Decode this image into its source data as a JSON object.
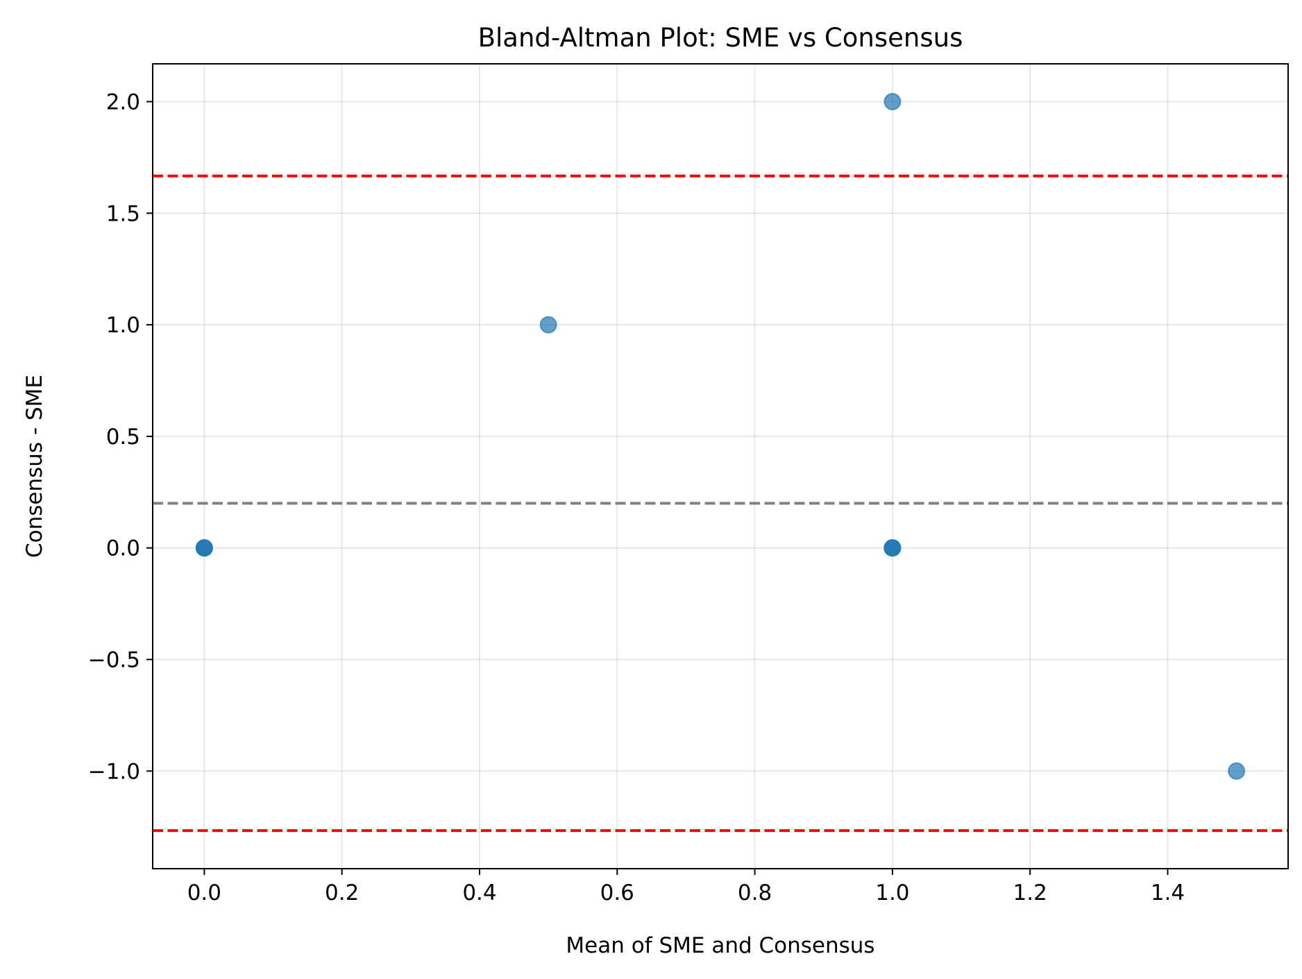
{
  "chart_data": {
    "type": "scatter",
    "title": "Bland-Altman Plot: SME vs Consensus",
    "xlabel": "Mean of SME and Consensus",
    "ylabel": "Consensus - SME",
    "xlim": [
      -0.075,
      1.575
    ],
    "ylim": [
      -1.4375,
      2.1695
    ],
    "xticks": [
      0.0,
      0.2,
      0.4,
      0.6,
      0.8,
      1.0,
      1.2,
      1.4
    ],
    "xtick_labels": [
      "0.0",
      "0.2",
      "0.4",
      "0.6",
      "0.8",
      "1.0",
      "1.2",
      "1.4"
    ],
    "yticks": [
      -1.0,
      -0.5,
      0.0,
      0.5,
      1.0,
      1.5,
      2.0
    ],
    "ytick_labels": [
      "−1.0",
      "−0.5",
      "0.0",
      "0.5",
      "1.0",
      "1.5",
      "2.0"
    ],
    "grid": true,
    "points": [
      {
        "x": 0.0,
        "y": 0.0
      },
      {
        "x": 0.0,
        "y": 0.0
      },
      {
        "x": 0.0,
        "y": 0.0
      },
      {
        "x": 0.5,
        "y": 1.0
      },
      {
        "x": 1.0,
        "y": 2.0
      },
      {
        "x": 1.0,
        "y": 0.0
      },
      {
        "x": 1.0,
        "y": 0.0
      },
      {
        "x": 1.0,
        "y": 0.0
      },
      {
        "x": 1.5,
        "y": -1.0
      }
    ],
    "reference_lines": [
      {
        "kind": "mean",
        "y": 0.2,
        "color": "#808080",
        "style": "dashed"
      },
      {
        "kind": "upper-limit",
        "y": 1.667,
        "color": "#ff0000",
        "style": "dashed"
      },
      {
        "kind": "lower-limit",
        "y": -1.267,
        "color": "#ff0000",
        "style": "dashed"
      }
    ],
    "point_color": "#1f77b4",
    "point_alpha": 0.7
  }
}
